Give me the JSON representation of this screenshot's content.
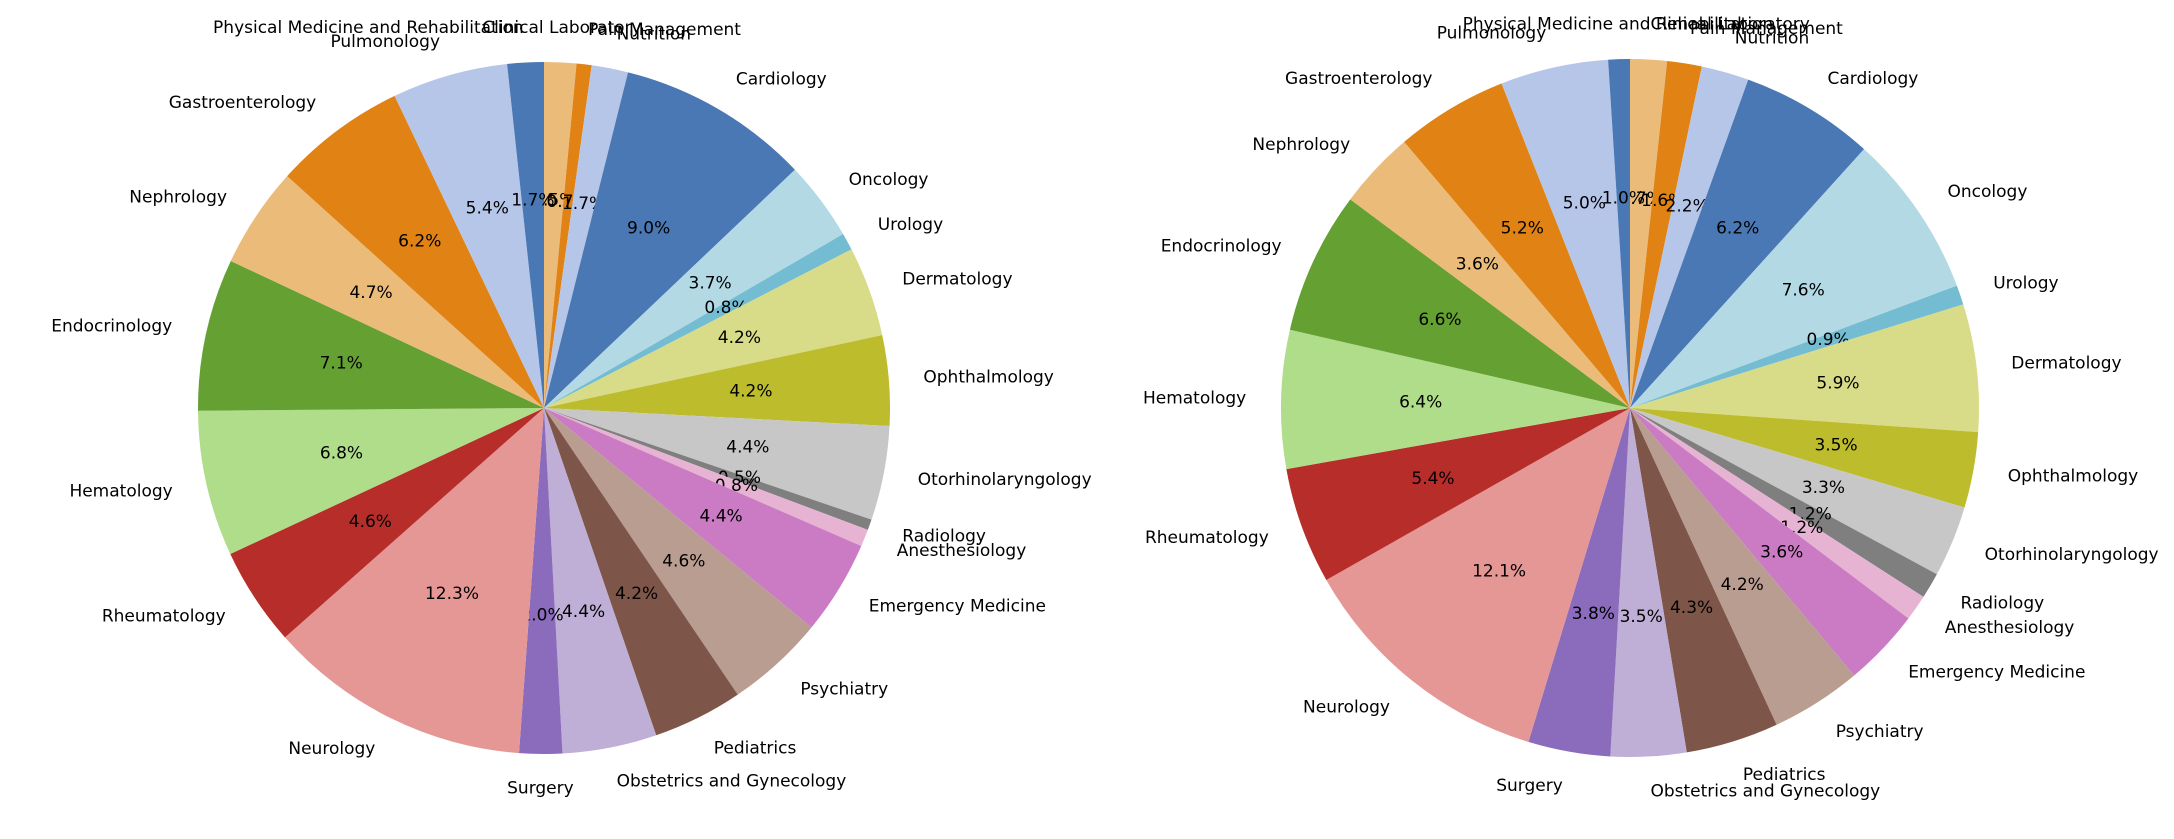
{
  "chart_data": [
    {
      "type": "pie",
      "start_angle_deg": 90,
      "direction": "clockwise",
      "categories": [
        "Clinical Laboratory",
        "Pain Management",
        "Nutrition",
        "Cardiology",
        "Oncology",
        "Urology",
        "Dermatology",
        "Ophthalmology",
        "Otorhinolaryngology",
        "Radiology",
        "Anesthesiology",
        "Emergency Medicine",
        "Psychiatry",
        "Pediatrics",
        "Obstetrics and Gynecology",
        "Surgery",
        "Neurology",
        "Rheumatology",
        "Hematology",
        "Endocrinology",
        "Nephrology",
        "Gastroenterology",
        "Pulmonology",
        "Physical Medicine and Rehabilitation"
      ],
      "values": [
        1.5,
        0.7,
        1.7,
        9.0,
        3.7,
        0.8,
        4.2,
        4.2,
        4.4,
        0.5,
        0.8,
        4.4,
        4.6,
        4.2,
        4.4,
        2.0,
        12.3,
        4.6,
        6.8,
        7.1,
        4.7,
        6.2,
        5.4,
        1.7
      ],
      "labels": [
        "1.5%",
        "0.7%",
        "1.7%",
        "9.0%",
        "3.7%",
        "0.8%",
        "4.2%",
        "4.2%",
        "4.4%",
        "0.5%",
        "0.8%",
        "4.4%",
        "4.6%",
        "4.2%",
        "4.4%",
        "2.0%",
        "12.3%",
        "4.6%",
        "6.8%",
        "7.1%",
        "4.7%",
        "6.2%",
        "5.4%",
        "1.7%"
      ]
    },
    {
      "type": "pie",
      "start_angle_deg": 90,
      "direction": "clockwise",
      "categories": [
        "Clinical Laboratory",
        "Pain Management",
        "Nutrition",
        "Cardiology",
        "Oncology",
        "Urology",
        "Dermatology",
        "Ophthalmology",
        "Otorhinolaryngology",
        "Radiology",
        "Anesthesiology",
        "Emergency Medicine",
        "Psychiatry",
        "Pediatrics",
        "Obstetrics and Gynecology",
        "Surgery",
        "Neurology",
        "Rheumatology",
        "Hematology",
        "Endocrinology",
        "Nephrology",
        "Gastroenterology",
        "Pulmonology",
        "Physical Medicine and Rehabilitation"
      ],
      "values": [
        1.7,
        1.6,
        2.2,
        6.2,
        7.6,
        0.9,
        5.9,
        3.5,
        3.3,
        1.2,
        1.2,
        3.6,
        4.2,
        4.3,
        3.5,
        3.8,
        12.1,
        5.4,
        6.4,
        6.6,
        3.6,
        5.2,
        5.0,
        1.0
      ],
      "labels": [
        "1.7%",
        "1.6%",
        "2.2%",
        "6.2%",
        "7.6%",
        "0.9%",
        "5.9%",
        "3.5%",
        "3.3%",
        "1.2%",
        "1.2%",
        "3.6%",
        "4.2%",
        "4.3%",
        "3.5%",
        "3.8%",
        "12.1%",
        "5.4%",
        "6.4%",
        "6.6%",
        "3.6%",
        "5.2%",
        "5.0%",
        "1.0%"
      ]
    }
  ],
  "colors": [
    "#ebbb7a",
    "#e08214",
    "#b6c6e9",
    "#4a78b5",
    "#b3d9e5",
    "#74bcd2",
    "#d8db87",
    "#bcbc2c",
    "#c7c7c7",
    "#7f7f7f",
    "#e6b4d2",
    "#ca7bc4",
    "#b99d91",
    "#7e5649",
    "#bfaed5",
    "#8b6bbc",
    "#e59795",
    "#b72d2a",
    "#b0dd8a",
    "#65a032",
    "#ebbb7a",
    "#e08214",
    "#b6c6e9",
    "#4a78b5"
  ]
}
